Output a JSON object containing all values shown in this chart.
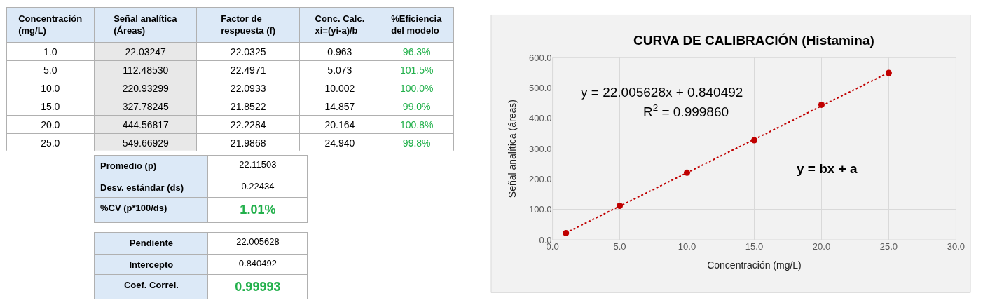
{
  "chart_data": [
    {
      "type": "other",
      "categories": [
        "Concentración\n(mg/L)",
        "Señal analítica\n(Áreas)",
        "Factor de\nrespuesta (f)",
        "Conc. Calc.\nxi=(yi-a)/b",
        "%Eficiencia\ndel modelo"
      ],
      "cell_labels": [
        [
          "1.0",
          "22.03247",
          "22.0325",
          "0.963",
          "96.3%"
        ],
        [
          "5.0",
          "112.48530",
          "22.4971",
          "5.073",
          "101.5%"
        ],
        [
          "10.0",
          "220.93299",
          "22.0933",
          "10.002",
          "100.0%"
        ],
        [
          "15.0",
          "327.78245",
          "21.8522",
          "14.857",
          "99.0%"
        ],
        [
          "20.0",
          "444.56817",
          "22.2284",
          "20.164",
          "100.8%"
        ],
        [
          "25.0",
          "549.66929",
          "21.9868",
          "24.940",
          "99.8%"
        ]
      ],
      "annotations": [
        "Promedio (p)",
        "22.11503",
        "Desv. estándar (ds)",
        "0.22434",
        "%CV (p*100/ds)",
        "1.01%",
        "Pendiente",
        "22.005628",
        "Intercepto",
        "0.840492",
        "Coef. Correl.",
        "0.99993"
      ]
    },
    {
      "type": "scatter",
      "title": "CURVA DE CALIBRACIÓN (Histamina)",
      "xlabel": "Concentración (mg/L)",
      "ylabel": "Señal analítica (áreas)",
      "series": [
        {
          "type": "scatter",
          "color": "#c00000",
          "marker": "circle",
          "x": [
            1.0,
            5.0,
            10.0,
            15.0,
            20.0,
            25.0
          ],
          "values": [
            22,
            112,
            221,
            328,
            445,
            550
          ]
        },
        {
          "type": "line",
          "color": "#c00000",
          "line_style": "dotted",
          "marker": "none",
          "x": [
            1.0,
            25.0
          ],
          "values": [
            23,
            551
          ]
        }
      ],
      "xlim": [
        0,
        30
      ],
      "xticks": [
        {
          "value": 0,
          "label": "0.0"
        },
        {
          "value": 5,
          "label": "5.0"
        },
        {
          "value": 10,
          "label": "10.0"
        },
        {
          "value": 15,
          "label": "15.0"
        },
        {
          "value": 20,
          "label": "20.0"
        },
        {
          "value": 25,
          "label": "25.0"
        },
        {
          "value": 30,
          "label": "30.0"
        }
      ],
      "ylim": [
        0,
        600
      ],
      "yticks": [
        {
          "value": 0,
          "label": "0.0"
        },
        {
          "value": 100,
          "label": "100.0"
        },
        {
          "value": 200,
          "label": "200.0"
        },
        {
          "value": 300,
          "label": "300.0"
        },
        {
          "value": 400,
          "label": "400.0"
        },
        {
          "value": 500,
          "label": "500.0"
        },
        {
          "value": 600,
          "label": "600.0"
        }
      ],
      "grid": true,
      "annotations": [
        "y = 22.005628x + 0.840492",
        "R$^{2}$ = 0.999860",
        "y = bx + a"
      ]
    }
  ]
}
